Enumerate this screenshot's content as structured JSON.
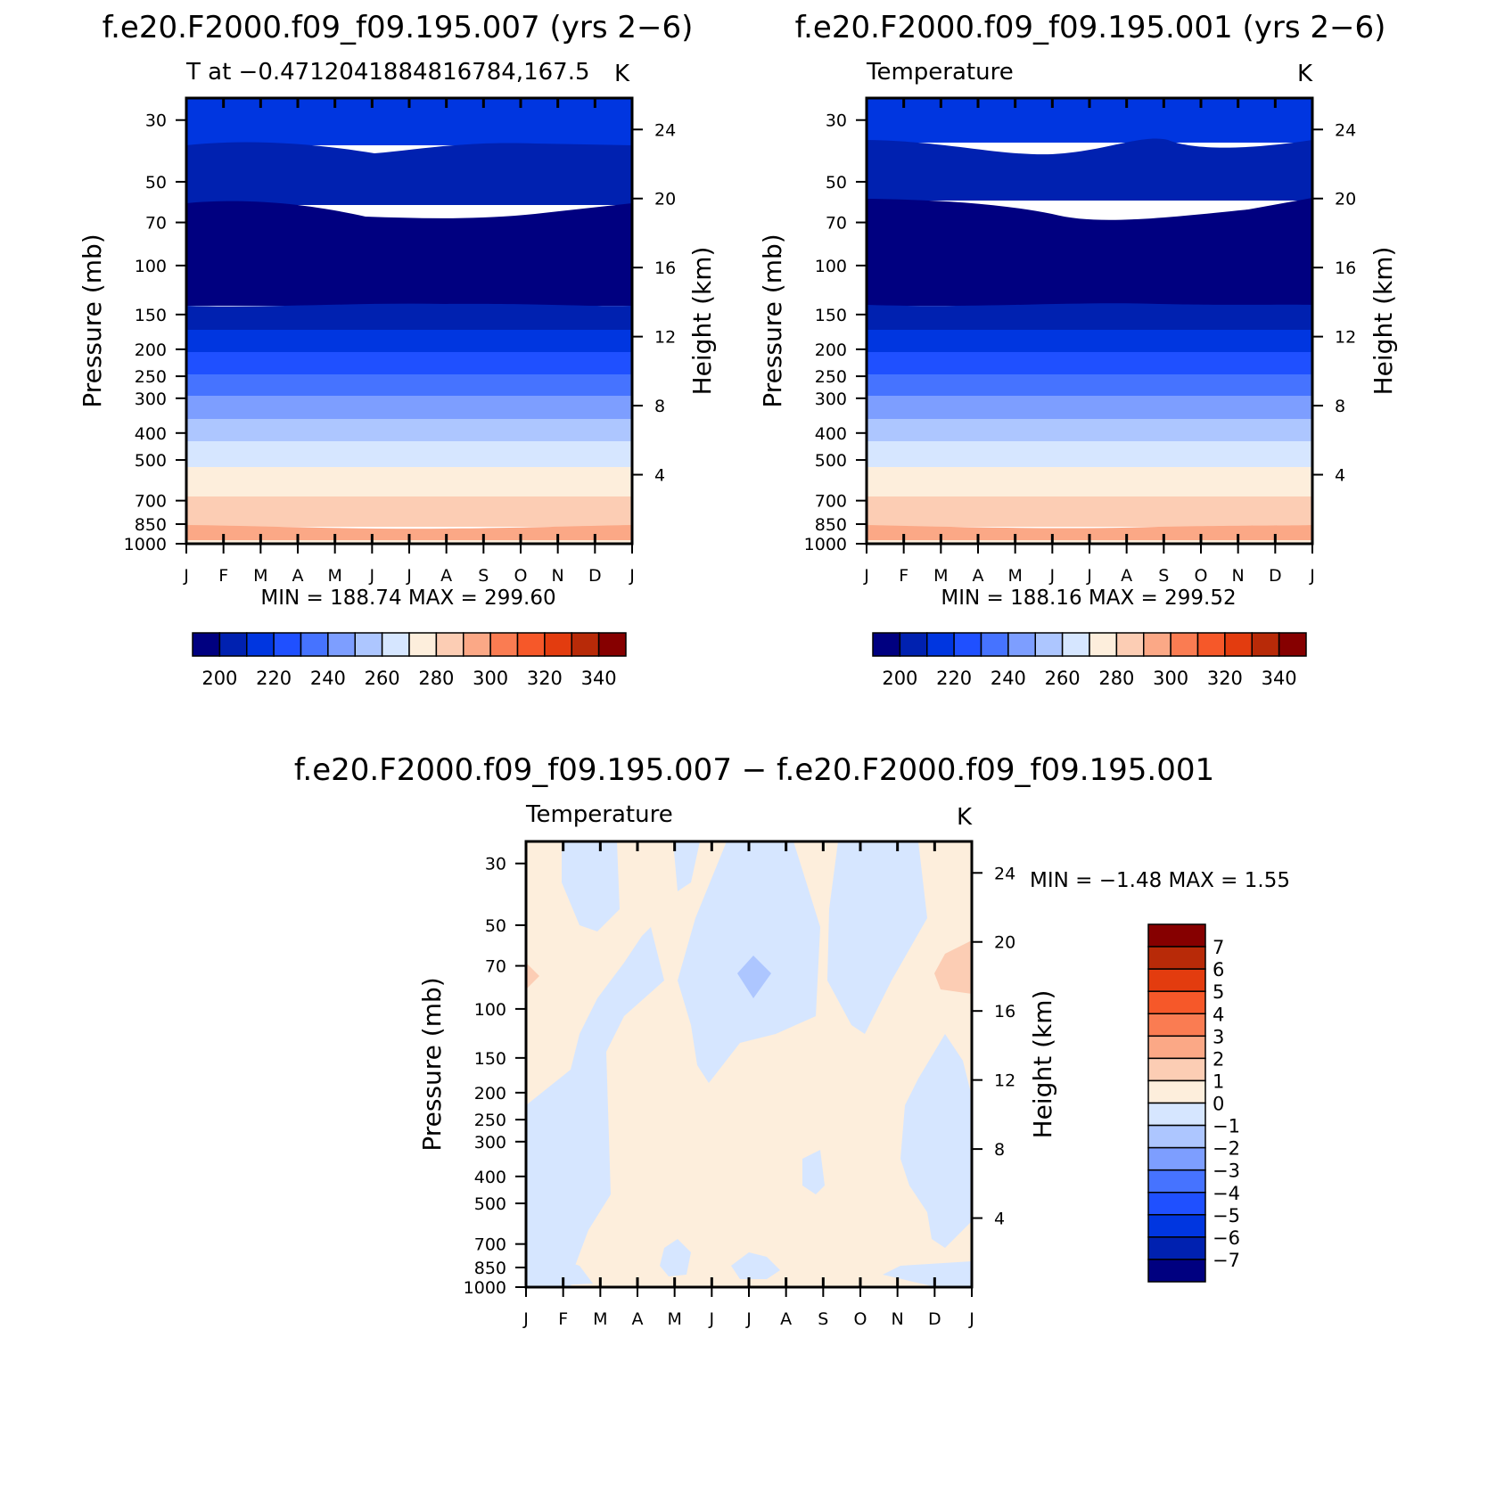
{
  "colors": {
    "abs_scale": [
      "#000080",
      "#0021b0",
      "#0036e0",
      "#1f50ff",
      "#4673ff",
      "#7d9eff",
      "#adc6ff",
      "#d6e6ff",
      "#fdeedc",
      "#fccdb4",
      "#fba886",
      "#fa7c52",
      "#f65829",
      "#e33c0f",
      "#b82a08",
      "#860000"
    ],
    "diff_scale": [
      "#000080",
      "#0021b0",
      "#0036e0",
      "#1f50ff",
      "#4673ff",
      "#7d9eff",
      "#adc6ff",
      "#d6e6ff",
      "#fdeedc",
      "#fccdb4",
      "#fba886",
      "#fa7c52",
      "#f65829",
      "#e33c0f",
      "#b82a08",
      "#860000"
    ]
  },
  "chart_data": [
    {
      "type": "heatmap",
      "title": "f.e20.F2000.f09_f09.195.007 (yrs 2−6)",
      "subtitle_left": "T at −0.4712041884816784,167.5",
      "subtitle_right": "K",
      "xlabel": "",
      "ylabel": "Pressure (mb)",
      "ylabel_right": "Height (km)",
      "x_ticks": [
        "J",
        "F",
        "M",
        "A",
        "M",
        "J",
        "J",
        "A",
        "S",
        "O",
        "N",
        "D",
        "J"
      ],
      "y_ticks": [
        "30",
        "50",
        "70",
        "100",
        "150",
        "200",
        "250",
        "300",
        "400",
        "500",
        "700",
        "850",
        "1000"
      ],
      "y_ticks_right": [
        "24",
        "20",
        "16",
        "12",
        "8",
        "4"
      ],
      "ylim": [
        1000,
        25
      ],
      "y_scale": "log",
      "stats": "MIN = 188.74 MAX = 299.60",
      "levels": [
        190,
        200,
        210,
        220,
        230,
        240,
        250,
        260,
        270,
        280,
        290,
        300,
        310,
        320,
        330,
        340,
        350
      ],
      "colorbar_labels": [
        "200",
        "220",
        "240",
        "260",
        "280",
        "300",
        "320",
        "340"
      ],
      "colorbar_placement": "bottom"
    },
    {
      "type": "heatmap",
      "title": "f.e20.F2000.f09_f09.195.001 (yrs 2−6)",
      "subtitle_left": "Temperature",
      "subtitle_right": "K",
      "xlabel": "",
      "ylabel": "Pressure (mb)",
      "ylabel_right": "Height (km)",
      "x_ticks": [
        "J",
        "F",
        "M",
        "A",
        "M",
        "J",
        "J",
        "A",
        "S",
        "O",
        "N",
        "D",
        "J"
      ],
      "y_ticks": [
        "30",
        "50",
        "70",
        "100",
        "150",
        "200",
        "250",
        "300",
        "400",
        "500",
        "700",
        "850",
        "1000"
      ],
      "y_ticks_right": [
        "24",
        "20",
        "16",
        "12",
        "8",
        "4"
      ],
      "ylim": [
        1000,
        25
      ],
      "y_scale": "log",
      "stats": "MIN = 188.16 MAX = 299.52",
      "levels": [
        190,
        200,
        210,
        220,
        230,
        240,
        250,
        260,
        270,
        280,
        290,
        300,
        310,
        320,
        330,
        340,
        350
      ],
      "colorbar_labels": [
        "200",
        "220",
        "240",
        "260",
        "280",
        "300",
        "320",
        "340"
      ],
      "colorbar_placement": "bottom"
    },
    {
      "type": "heatmap",
      "title": "f.e20.F2000.f09_f09.195.007 − f.e20.F2000.f09_f09.195.001",
      "subtitle_left": "Temperature",
      "subtitle_right": "K",
      "xlabel": "",
      "ylabel": "Pressure (mb)",
      "ylabel_right": "Height (km)",
      "x_ticks": [
        "J",
        "F",
        "M",
        "A",
        "M",
        "J",
        "J",
        "A",
        "S",
        "O",
        "N",
        "D",
        "J"
      ],
      "y_ticks": [
        "30",
        "50",
        "70",
        "100",
        "150",
        "200",
        "250",
        "300",
        "400",
        "500",
        "700",
        "850",
        "1000"
      ],
      "y_ticks_right": [
        "24",
        "20",
        "16",
        "12",
        "8",
        "4"
      ],
      "ylim": [
        1000,
        25
      ],
      "y_scale": "log",
      "stats": "MIN = −1.48 MAX = 1.55",
      "levels": [
        -7,
        -6,
        -5,
        -4,
        -3,
        -2,
        -1,
        0,
        1,
        2,
        3,
        4,
        5,
        6,
        7
      ],
      "colorbar_labels": [
        "7",
        "6",
        "5",
        "4",
        "3",
        "2",
        "1",
        "0",
        "−1",
        "−2",
        "−3",
        "−4",
        "−5",
        "−6",
        "−7"
      ],
      "colorbar_placement": "right"
    }
  ]
}
